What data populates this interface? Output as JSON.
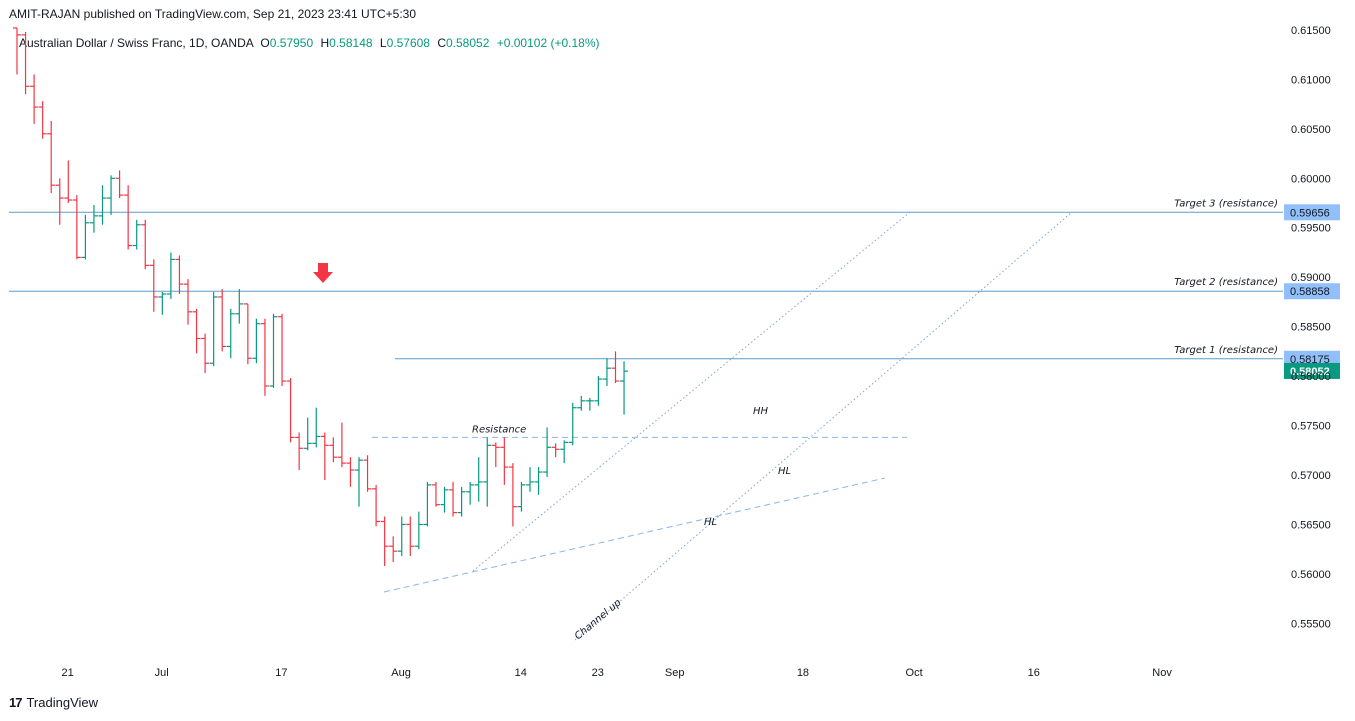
{
  "header": {
    "publisher_line": "AMIT-RAJAN published on TradingView.com, Sep 21, 2023 23:41 UTC+5:30",
    "symbol": "Australian Dollar / Swiss Franc, 1D, OANDA",
    "open_label": "O",
    "open": "0.57950",
    "high_label": "H",
    "high": "0.58148",
    "low_label": "L",
    "low": "0.57608",
    "close_label": "C",
    "close": "0.58052",
    "change": "+0.00102 (+0.18%)"
  },
  "footer": {
    "brand": "TradingView",
    "logo_glyph": "17"
  },
  "colors": {
    "up": "#089981",
    "down": "#f23645",
    "level_line": "#5b9cc9",
    "axis_text": "#131722",
    "last_price_bg": "#089981",
    "level_tag_bg": "#90bff9"
  },
  "chart_data": {
    "type": "ohlc",
    "title": "Australian Dollar / Swiss Franc, 1D, OANDA",
    "y_ticks": [
      "0.61500",
      "0.61000",
      "0.60500",
      "0.60000",
      "0.59500",
      "0.59000",
      "0.58500",
      "0.58000",
      "0.57500",
      "0.57000",
      "0.56500",
      "0.56000",
      "0.55500"
    ],
    "y_tick_values": [
      0.615,
      0.61,
      0.605,
      0.6,
      0.595,
      0.59,
      0.585,
      0.58,
      0.575,
      0.57,
      0.565,
      0.56,
      0.555
    ],
    "ylim": [
      0.5518,
      0.6157
    ],
    "x_ticks": [
      "21",
      "Jul",
      "17",
      "Aug",
      "14",
      "23",
      "Sep",
      "18",
      "Oct",
      "16",
      "Nov"
    ],
    "x_tick_bar_index": [
      3,
      14,
      28,
      42,
      56,
      65,
      74,
      89,
      102,
      116,
      131
    ],
    "bars": [
      {
        "o": 0.6152,
        "h": 0.6152,
        "l": 0.6105,
        "c": 0.6145
      },
      {
        "o": 0.6145,
        "h": 0.6148,
        "l": 0.6085,
        "c": 0.6093
      },
      {
        "o": 0.6093,
        "h": 0.6105,
        "l": 0.6055,
        "c": 0.6072
      },
      {
        "o": 0.6072,
        "h": 0.6078,
        "l": 0.604,
        "c": 0.6045
      },
      {
        "o": 0.6045,
        "h": 0.6058,
        "l": 0.5985,
        "c": 0.5993
      },
      {
        "o": 0.5993,
        "h": 0.6,
        "l": 0.5953,
        "c": 0.598
      },
      {
        "o": 0.598,
        "h": 0.6018,
        "l": 0.5975,
        "c": 0.5978
      },
      {
        "o": 0.5978,
        "h": 0.5983,
        "l": 0.5918,
        "c": 0.592
      },
      {
        "o": 0.592,
        "h": 0.5963,
        "l": 0.5918,
        "c": 0.5955
      },
      {
        "o": 0.5955,
        "h": 0.5973,
        "l": 0.5945,
        "c": 0.5962
      },
      {
        "o": 0.5962,
        "h": 0.5993,
        "l": 0.5953,
        "c": 0.598
      },
      {
        "o": 0.598,
        "h": 0.6003,
        "l": 0.5963,
        "c": 0.6
      },
      {
        "o": 0.6,
        "h": 0.6008,
        "l": 0.598,
        "c": 0.5983
      },
      {
        "o": 0.5983,
        "h": 0.5993,
        "l": 0.5928,
        "c": 0.5932
      },
      {
        "o": 0.5932,
        "h": 0.5958,
        "l": 0.5928,
        "c": 0.5953
      },
      {
        "o": 0.5953,
        "h": 0.5958,
        "l": 0.5908,
        "c": 0.5912
      },
      {
        "o": 0.5912,
        "h": 0.5918,
        "l": 0.5865,
        "c": 0.588
      },
      {
        "o": 0.588,
        "h": 0.5885,
        "l": 0.5862,
        "c": 0.5883
      },
      {
        "o": 0.5883,
        "h": 0.5925,
        "l": 0.5878,
        "c": 0.5918
      },
      {
        "o": 0.5918,
        "h": 0.5922,
        "l": 0.5883,
        "c": 0.5893
      },
      {
        "o": 0.5893,
        "h": 0.5898,
        "l": 0.5852,
        "c": 0.5865
      },
      {
        "o": 0.5865,
        "h": 0.5868,
        "l": 0.5823,
        "c": 0.5838
      },
      {
        "o": 0.5838,
        "h": 0.5843,
        "l": 0.5803,
        "c": 0.5813
      },
      {
        "o": 0.5813,
        "h": 0.5885,
        "l": 0.581,
        "c": 0.588
      },
      {
        "o": 0.588,
        "h": 0.5888,
        "l": 0.5825,
        "c": 0.583
      },
      {
        "o": 0.583,
        "h": 0.5868,
        "l": 0.5818,
        "c": 0.5863
      },
      {
        "o": 0.5863,
        "h": 0.5888,
        "l": 0.5853,
        "c": 0.5873
      },
      {
        "o": 0.5873,
        "h": 0.5873,
        "l": 0.5812,
        "c": 0.5818
      },
      {
        "o": 0.5818,
        "h": 0.5858,
        "l": 0.5813,
        "c": 0.5853
      },
      {
        "o": 0.5853,
        "h": 0.5858,
        "l": 0.578,
        "c": 0.579
      },
      {
        "o": 0.579,
        "h": 0.5863,
        "l": 0.5788,
        "c": 0.586
      },
      {
        "o": 0.586,
        "h": 0.5863,
        "l": 0.579,
        "c": 0.5795
      },
      {
        "o": 0.5795,
        "h": 0.5798,
        "l": 0.5733,
        "c": 0.5738
      },
      {
        "o": 0.5738,
        "h": 0.5743,
        "l": 0.5705,
        "c": 0.5727
      },
      {
        "o": 0.5727,
        "h": 0.5758,
        "l": 0.5725,
        "c": 0.5732
      },
      {
        "o": 0.5732,
        "h": 0.5768,
        "l": 0.5728,
        "c": 0.5739
      },
      {
        "o": 0.5739,
        "h": 0.5743,
        "l": 0.5695,
        "c": 0.573
      },
      {
        "o": 0.573,
        "h": 0.5738,
        "l": 0.5713,
        "c": 0.5718
      },
      {
        "o": 0.5718,
        "h": 0.5753,
        "l": 0.5708,
        "c": 0.5712
      },
      {
        "o": 0.5712,
        "h": 0.5718,
        "l": 0.5688,
        "c": 0.5705
      },
      {
        "o": 0.5705,
        "h": 0.5718,
        "l": 0.5668,
        "c": 0.5715
      },
      {
        "o": 0.5715,
        "h": 0.572,
        "l": 0.5683,
        "c": 0.5686
      },
      {
        "o": 0.5686,
        "h": 0.569,
        "l": 0.5648,
        "c": 0.5653
      },
      {
        "o": 0.5653,
        "h": 0.5658,
        "l": 0.5608,
        "c": 0.5628
      },
      {
        "o": 0.5628,
        "h": 0.5638,
        "l": 0.5612,
        "c": 0.5623
      },
      {
        "o": 0.5623,
        "h": 0.5658,
        "l": 0.5618,
        "c": 0.565
      },
      {
        "o": 0.565,
        "h": 0.5658,
        "l": 0.5618,
        "c": 0.5628
      },
      {
        "o": 0.5628,
        "h": 0.5663,
        "l": 0.5625,
        "c": 0.565
      },
      {
        "o": 0.565,
        "h": 0.5693,
        "l": 0.5648,
        "c": 0.569
      },
      {
        "o": 0.569,
        "h": 0.5693,
        "l": 0.5668,
        "c": 0.567
      },
      {
        "o": 0.567,
        "h": 0.5688,
        "l": 0.5662,
        "c": 0.5685
      },
      {
        "o": 0.5685,
        "h": 0.5693,
        "l": 0.5658,
        "c": 0.5662
      },
      {
        "o": 0.5662,
        "h": 0.5688,
        "l": 0.5658,
        "c": 0.5683
      },
      {
        "o": 0.5683,
        "h": 0.5693,
        "l": 0.567,
        "c": 0.569
      },
      {
        "o": 0.569,
        "h": 0.5718,
        "l": 0.5673,
        "c": 0.5693
      },
      {
        "o": 0.5693,
        "h": 0.5738,
        "l": 0.5668,
        "c": 0.573
      },
      {
        "o": 0.573,
        "h": 0.5733,
        "l": 0.5708,
        "c": 0.5728
      },
      {
        "o": 0.5728,
        "h": 0.5738,
        "l": 0.569,
        "c": 0.5708
      },
      {
        "o": 0.5708,
        "h": 0.5712,
        "l": 0.5648,
        "c": 0.5668
      },
      {
        "o": 0.5668,
        "h": 0.5693,
        "l": 0.5663,
        "c": 0.569
      },
      {
        "o": 0.569,
        "h": 0.5708,
        "l": 0.5683,
        "c": 0.5693
      },
      {
        "o": 0.5693,
        "h": 0.5708,
        "l": 0.568,
        "c": 0.5703
      },
      {
        "o": 0.5703,
        "h": 0.5748,
        "l": 0.5698,
        "c": 0.5728
      },
      {
        "o": 0.5728,
        "h": 0.5732,
        "l": 0.5718,
        "c": 0.5726
      },
      {
        "o": 0.5726,
        "h": 0.5735,
        "l": 0.5712,
        "c": 0.5733
      },
      {
        "o": 0.5733,
        "h": 0.5773,
        "l": 0.573,
        "c": 0.5768
      },
      {
        "o": 0.5768,
        "h": 0.578,
        "l": 0.5765,
        "c": 0.5775
      },
      {
        "o": 0.5775,
        "h": 0.5778,
        "l": 0.5765,
        "c": 0.5775
      },
      {
        "o": 0.5775,
        "h": 0.58,
        "l": 0.577,
        "c": 0.5797
      },
      {
        "o": 0.5797,
        "h": 0.5818,
        "l": 0.579,
        "c": 0.5808
      },
      {
        "o": 0.5808,
        "h": 0.5825,
        "l": 0.5793,
        "c": 0.5795
      },
      {
        "o": 0.5795,
        "h": 0.5815,
        "l": 0.5761,
        "c": 0.5805
      }
    ],
    "bar_spacing": "~1 per trading day",
    "horizontal_levels": [
      {
        "label": "Target 3 (resistance)",
        "value": 0.59656,
        "tag": "0.59656"
      },
      {
        "label": "Target 2 (resistance)",
        "value": 0.58858,
        "tag": "0.58858"
      },
      {
        "label": "Target 1 (resistance)",
        "value": 0.58175,
        "tag": "0.58175"
      }
    ],
    "last_price": {
      "value": 0.58052,
      "tag": "0.58052"
    },
    "annotations": [
      {
        "text": "Resistance",
        "type": "dashed trend line",
        "value": 0.5738
      },
      {
        "text": "HH",
        "type": "label"
      },
      {
        "text": "HL",
        "type": "label"
      },
      {
        "text": "HL",
        "type": "label"
      },
      {
        "text": "Channel up",
        "type": "rotated label"
      }
    ],
    "marker": {
      "type": "down arrow",
      "color": "#f23645"
    }
  }
}
